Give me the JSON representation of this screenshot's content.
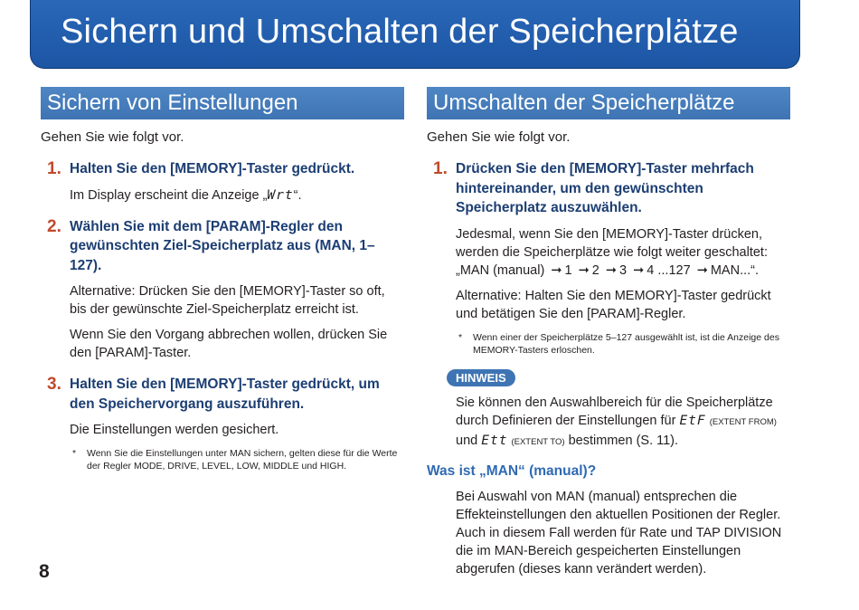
{
  "page_title": "Sichern und Umschalten der Speicherplätze",
  "left": {
    "title": "Sichern von Einstellungen",
    "intro": "Gehen Sie wie folgt vor.",
    "step1": {
      "num": "1.",
      "text": "Halten Sie den [MEMORY]-Taster gedrückt."
    },
    "step1_para_pre": "Im Display erscheint die Anzeige „",
    "step1_display": "Wrt",
    "step1_para_post": "“.",
    "step2": {
      "num": "2.",
      "text": "Wählen Sie mit dem [PARAM]-Regler den gewünschten Ziel-Speicherplatz aus (MAN, 1–127)."
    },
    "step2_para1": "Alternative: Drücken Sie den [MEMORY]-Taster so oft, bis der gewünschte Ziel-Speicherplatz erreicht ist.",
    "step2_para2": "Wenn Sie den Vorgang abbrechen wollen, drücken Sie den [PARAM]-Taster.",
    "step3": {
      "num": "3.",
      "text": "Halten Sie den [MEMORY]-Taster gedrückt, um den Speichervorgang auszuführen."
    },
    "step3_para": "Die Einstellungen werden gesichert.",
    "note_star": "*",
    "note": "Wenn Sie die Einstellungen unter MAN sichern, gelten diese für die Werte der Regler MODE, DRIVE, LEVEL, LOW, MIDDLE und HIGH."
  },
  "right": {
    "title": "Umschalten der Speicherplätze",
    "intro": "Gehen Sie wie folgt vor.",
    "step1": {
      "num": "1.",
      "text": "Drücken Sie den [MEMORY]-Taster mehrfach hintereinander, um den gewünschten Speicherplatz auszuwählen."
    },
    "step1_para1_a": "Jedesmal, wenn Sie den [MEMORY]-Taster drücken, werden die Speicherplätze wie folgt weiter geschaltet: „MAN (manual)",
    "seq": [
      "1",
      "2",
      "3",
      "4 ...127",
      "MAN...“."
    ],
    "arrow": "➞",
    "step1_para2": "Alternative: Halten Sie den MEMORY]-Taster gedrückt und betätigen Sie den [PARAM]-Regler.",
    "note_star": "*",
    "note": "Wenn einer der Speicherplätze 5–127 ausgewählt ist, ist die Anzeige des MEMORY-Tasters erloschen.",
    "hinweis": "HINWEIS",
    "hint_a": "Sie können den Auswahlbereich für die Speicherplätze durch Definieren der Einstellungen für ",
    "hint_disp1": "EtF",
    "hint_small1": "(EXTENT FROM)",
    "hint_und": " und ",
    "hint_disp2": "Ett",
    "hint_small2": "(EXTENT TO)",
    "hint_b": " bestimmen (S. 11).",
    "subhead": "Was ist „MAN“ (manual)?",
    "man_para": "Bei Auswahl von MAN (manual) entsprechen die Effekteinstellungen den aktuellen Positionen der Regler. Auch in diesem Fall werden für Rate und TAP DIVISION die im MAN-Bereich gespeicherten Einstellungen abgerufen (dieses kann verändert werden)."
  },
  "page_number": "8"
}
